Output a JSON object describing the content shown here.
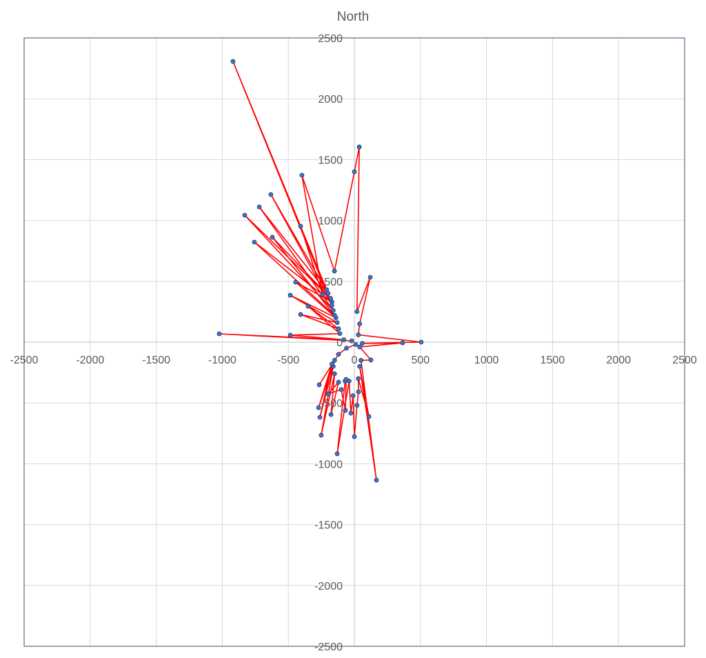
{
  "chart_data": {
    "type": "scatter",
    "title": "North",
    "xlabel": "",
    "ylabel": "",
    "xlim": [
      -2500,
      2500
    ],
    "ylim": [
      -2500,
      2500
    ],
    "xticks": [
      -2500,
      -2000,
      -1500,
      -1000,
      -500,
      0,
      500,
      1000,
      1500,
      2000,
      2500
    ],
    "yticks": [
      -2500,
      -2000,
      -1500,
      -1000,
      -500,
      0,
      500,
      1000,
      1500,
      2000,
      2500
    ],
    "grid": true,
    "legend": "none",
    "line_color": "#FF0000",
    "marker_fill": "#4472C4",
    "marker_edge": "#203864",
    "points": [
      [
        -20,
        10
      ],
      [
        -1023,
        68
      ],
      [
        -80,
        20
      ],
      [
        -485,
        57
      ],
      [
        -110,
        70
      ],
      [
        -350,
        295
      ],
      [
        -120,
        110
      ],
      [
        -407,
        227
      ],
      [
        -130,
        160
      ],
      [
        -485,
        385
      ],
      [
        -140,
        200
      ],
      [
        -444,
        493
      ],
      [
        -170,
        330
      ],
      [
        -757,
        822
      ],
      [
        -150,
        220
      ],
      [
        -621,
        862
      ],
      [
        -180,
        360
      ],
      [
        -830,
        1043
      ],
      [
        -160,
        260
      ],
      [
        -720,
        1111
      ],
      [
        -200,
        400
      ],
      [
        -632,
        1213
      ],
      [
        -170,
        300
      ],
      [
        -919,
        2307
      ],
      [
        -210,
        430
      ],
      [
        -407,
        952
      ],
      [
        -240,
        390
      ],
      [
        -397,
        1372
      ],
      [
        -151,
        584
      ],
      [
        0,
        1400
      ],
      [
        37,
        1604
      ],
      [
        20,
        250
      ],
      [
        120,
        533
      ],
      [
        40,
        150
      ],
      [
        30,
        60
      ],
      [
        506,
        0
      ],
      [
        60,
        -10
      ],
      [
        365,
        -6
      ],
      [
        40,
        -40
      ],
      [
        125,
        -147
      ],
      [
        50,
        -150
      ],
      [
        167,
        -1134
      ],
      [
        40,
        -200
      ],
      [
        110,
        -612
      ],
      [
        30,
        -300
      ],
      [
        31,
        -408
      ],
      [
        20,
        -520
      ],
      [
        0,
        -777
      ],
      [
        -10,
        -440
      ],
      [
        -26,
        -584
      ],
      [
        -40,
        -320
      ],
      [
        -130,
        -918
      ],
      [
        -70,
        -320
      ],
      [
        -63,
        -306
      ],
      [
        -68,
        -561
      ],
      [
        -100,
        -390
      ],
      [
        -198,
        -425
      ],
      [
        -120,
        -330
      ],
      [
        -177,
        -595
      ],
      [
        -150,
        -260
      ],
      [
        -251,
        -765
      ],
      [
        -160,
        -200
      ],
      [
        -261,
        -618
      ],
      [
        -170,
        -180
      ],
      [
        -271,
        -539
      ],
      [
        -150,
        -150
      ],
      [
        -266,
        -351
      ],
      [
        -120,
        -100
      ],
      [
        -60,
        -50
      ],
      [
        10,
        -20
      ]
    ]
  }
}
